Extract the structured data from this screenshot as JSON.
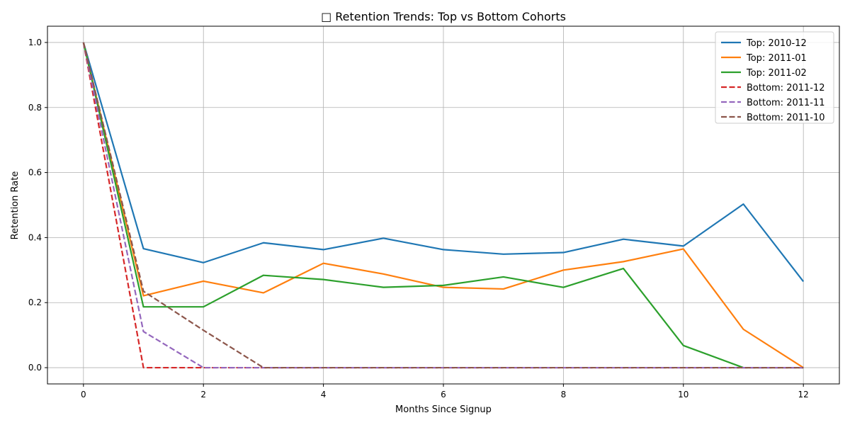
{
  "chart_data": {
    "type": "line",
    "title": "□ Retention Trends: Top vs Bottom Cohorts",
    "xlabel": "Months Since Signup",
    "ylabel": "Retention Rate",
    "xlim": [
      -0.6,
      12.6
    ],
    "ylim": [
      -0.05,
      1.05
    ],
    "x_ticks": [
      "0",
      "2",
      "4",
      "6",
      "8",
      "10",
      "12"
    ],
    "y_ticks": [
      "0.0",
      "0.2",
      "0.4",
      "0.6",
      "0.8",
      "1.0"
    ],
    "grid": true,
    "legend_position": "top-right",
    "series": [
      {
        "name": "Top: 2010-12",
        "color": "#1f77b4",
        "style": "solid",
        "x": [
          0,
          1,
          2,
          3,
          4,
          5,
          6,
          7,
          8,
          9,
          10,
          11,
          12
        ],
        "values": [
          1.0,
          0.366,
          0.323,
          0.384,
          0.363,
          0.398,
          0.363,
          0.349,
          0.354,
          0.395,
          0.374,
          0.503,
          0.265
        ]
      },
      {
        "name": "Top: 2011-01",
        "color": "#ff7f0e",
        "style": "solid",
        "x": [
          0,
          1,
          2,
          3,
          4,
          5,
          6,
          7,
          8,
          9,
          10,
          11,
          12
        ],
        "values": [
          1.0,
          0.221,
          0.266,
          0.23,
          0.321,
          0.288,
          0.247,
          0.242,
          0.3,
          0.326,
          0.365,
          0.118,
          0.0
        ]
      },
      {
        "name": "Top: 2011-02",
        "color": "#2ca02c",
        "style": "solid",
        "x": [
          0,
          1,
          2,
          3,
          4,
          5,
          6,
          7,
          8,
          9,
          10,
          11,
          12
        ],
        "values": [
          1.0,
          0.187,
          0.187,
          0.284,
          0.271,
          0.247,
          0.253,
          0.279,
          0.247,
          0.305,
          0.068,
          0.0,
          0.0
        ]
      },
      {
        "name": "Bottom: 2011-12",
        "color": "#d62728",
        "style": "dashed",
        "x": [
          0,
          1,
          2,
          3,
          4,
          5,
          6,
          7,
          8,
          9,
          10,
          11,
          12
        ],
        "values": [
          1.0,
          0.0,
          0.0,
          0.0,
          0.0,
          0.0,
          0.0,
          0.0,
          0.0,
          0.0,
          0.0,
          0.0,
          0.0
        ]
      },
      {
        "name": "Bottom: 2011-11",
        "color": "#9467bd",
        "style": "dashed",
        "x": [
          0,
          1,
          2,
          3,
          4,
          5,
          6,
          7,
          8,
          9,
          10,
          11,
          12
        ],
        "values": [
          1.0,
          0.111,
          0.0,
          0.0,
          0.0,
          0.0,
          0.0,
          0.0,
          0.0,
          0.0,
          0.0,
          0.0,
          0.0
        ]
      },
      {
        "name": "Bottom: 2011-10",
        "color": "#8c564b",
        "style": "dashed",
        "x": [
          0,
          1,
          2,
          3,
          4,
          5,
          6,
          7,
          8,
          9,
          10,
          11,
          12
        ],
        "values": [
          1.0,
          0.235,
          0.115,
          0.0,
          0.0,
          0.0,
          0.0,
          0.0,
          0.0,
          0.0,
          0.0,
          0.0,
          0.0
        ]
      }
    ]
  }
}
